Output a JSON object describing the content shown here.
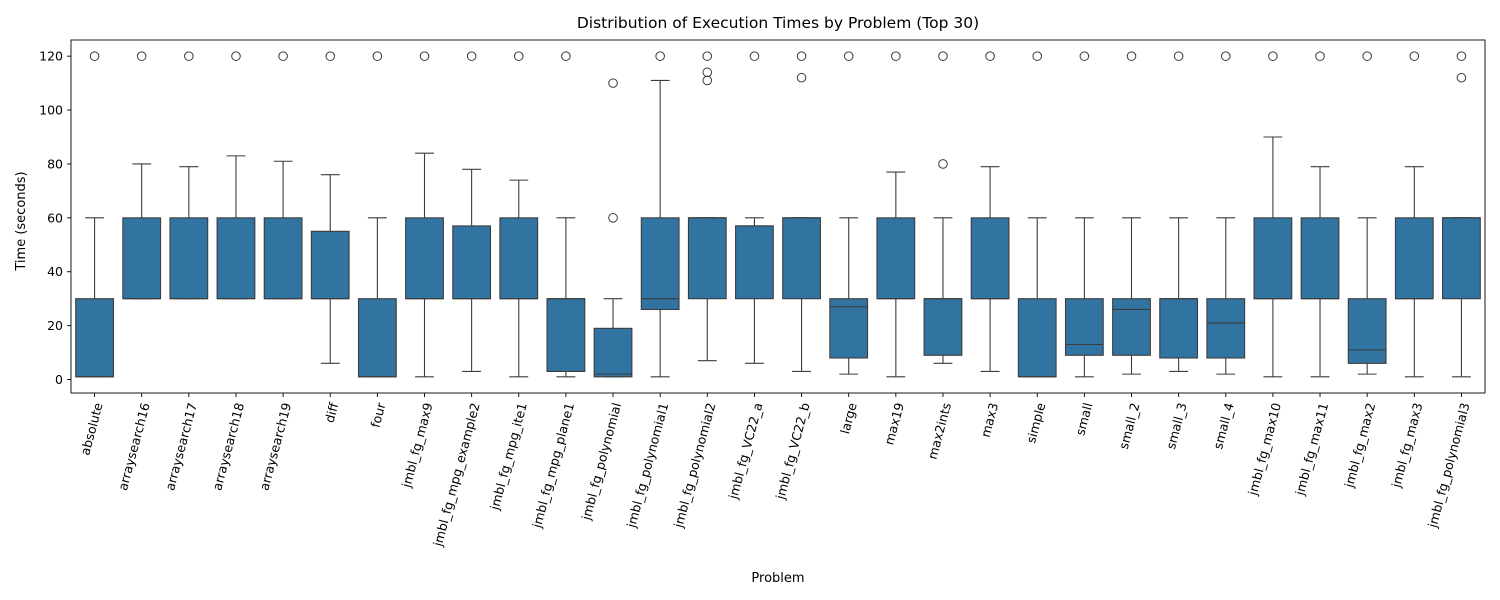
{
  "chart_data": {
    "type": "boxplot",
    "title": "Distribution of Execution Times by Problem (Top 30)",
    "xlabel": "Problem",
    "ylabel": "Time (seconds)",
    "ylim": [
      -5,
      126
    ],
    "yticks": [
      0,
      20,
      40,
      60,
      80,
      100,
      120
    ],
    "grid": false,
    "box_color": "#3274a1",
    "line_color": "#3c3c3c",
    "categories": [
      "absolute",
      "arraysearch16",
      "arraysearch17",
      "arraysearch18",
      "arraysearch19",
      "diff",
      "four",
      "jmbl_fg_max9",
      "jmbl_fg_mpg_example2",
      "jmbl_fg_mpg_ite1",
      "jmbl_fg_mpg_plane1",
      "jmbl_fg_polynomial",
      "jmbl_fg_polynomial1",
      "jmbl_fg_polynomial2",
      "jmbl_fg_VC22_a",
      "jmbl_fg_VC22_b",
      "large",
      "max19",
      "max2ints",
      "max3",
      "simple",
      "small",
      "small_2",
      "small_3",
      "small_4",
      "jmbl_fg_max10",
      "jmbl_fg_max11",
      "jmbl_fg_max2",
      "jmbl_fg_max3",
      "jmbl_fg_polynomial3"
    ],
    "boxes": [
      {
        "whislo": 1,
        "q1": 1,
        "med": 1,
        "q3": 30,
        "whishi": 60,
        "fliers": [
          120
        ]
      },
      {
        "whislo": 30,
        "q1": 30,
        "med": 30,
        "q3": 60,
        "whishi": 80,
        "fliers": [
          120
        ]
      },
      {
        "whislo": 30,
        "q1": 30,
        "med": 30,
        "q3": 60,
        "whishi": 79,
        "fliers": [
          120
        ]
      },
      {
        "whislo": 30,
        "q1": 30,
        "med": 30,
        "q3": 60,
        "whishi": 83,
        "fliers": [
          120
        ]
      },
      {
        "whislo": 30,
        "q1": 30,
        "med": 30,
        "q3": 60,
        "whishi": 81,
        "fliers": [
          120
        ]
      },
      {
        "whislo": 6,
        "q1": 30,
        "med": 30,
        "q3": 55,
        "whishi": 76,
        "fliers": [
          120
        ]
      },
      {
        "whislo": 1,
        "q1": 1,
        "med": 1,
        "q3": 30,
        "whishi": 60,
        "fliers": [
          120
        ]
      },
      {
        "whislo": 1,
        "q1": 30,
        "med": 30,
        "q3": 60,
        "whishi": 84,
        "fliers": [
          120
        ]
      },
      {
        "whislo": 3,
        "q1": 30,
        "med": 30,
        "q3": 57,
        "whishi": 78,
        "fliers": [
          120
        ]
      },
      {
        "whislo": 1,
        "q1": 30,
        "med": 30,
        "q3": 60,
        "whishi": 74,
        "fliers": [
          120
        ]
      },
      {
        "whislo": 1,
        "q1": 3,
        "med": 30,
        "q3": 30,
        "whishi": 60,
        "fliers": [
          120
        ]
      },
      {
        "whislo": 1,
        "q1": 1,
        "med": 2,
        "q3": 19,
        "whishi": 30,
        "fliers": [
          60,
          110
        ]
      },
      {
        "whislo": 1,
        "q1": 26,
        "med": 30,
        "q3": 60,
        "whishi": 111,
        "fliers": [
          120
        ]
      },
      {
        "whislo": 7,
        "q1": 30,
        "med": 60,
        "q3": 60,
        "whishi": 60,
        "fliers": [
          111,
          114,
          120
        ]
      },
      {
        "whislo": 6,
        "q1": 30,
        "med": 57,
        "q3": 57,
        "whishi": 60,
        "fliers": [
          120
        ]
      },
      {
        "whislo": 3,
        "q1": 30,
        "med": 60,
        "q3": 60,
        "whishi": 60,
        "fliers": [
          112,
          120
        ]
      },
      {
        "whislo": 2,
        "q1": 8,
        "med": 27,
        "q3": 30,
        "whishi": 60,
        "fliers": [
          120
        ]
      },
      {
        "whislo": 1,
        "q1": 30,
        "med": 30,
        "q3": 60,
        "whishi": 77,
        "fliers": [
          120
        ]
      },
      {
        "whislo": 6,
        "q1": 9,
        "med": 30,
        "q3": 30,
        "whishi": 60,
        "fliers": [
          80,
          120
        ]
      },
      {
        "whislo": 3,
        "q1": 30,
        "med": 30,
        "q3": 60,
        "whishi": 79,
        "fliers": [
          120
        ]
      },
      {
        "whislo": 1,
        "q1": 1,
        "med": 1,
        "q3": 30,
        "whishi": 60,
        "fliers": [
          120
        ]
      },
      {
        "whislo": 1,
        "q1": 9,
        "med": 13,
        "q3": 30,
        "whishi": 60,
        "fliers": [
          120
        ]
      },
      {
        "whislo": 2,
        "q1": 9,
        "med": 26,
        "q3": 30,
        "whishi": 60,
        "fliers": [
          120
        ]
      },
      {
        "whislo": 3,
        "q1": 8,
        "med": 30,
        "q3": 30,
        "whishi": 60,
        "fliers": [
          120
        ]
      },
      {
        "whislo": 2,
        "q1": 8,
        "med": 21,
        "q3": 30,
        "whishi": 60,
        "fliers": [
          120
        ]
      },
      {
        "whislo": 1,
        "q1": 30,
        "med": 30,
        "q3": 60,
        "whishi": 90,
        "fliers": [
          120
        ]
      },
      {
        "whislo": 1,
        "q1": 30,
        "med": 30,
        "q3": 60,
        "whishi": 79,
        "fliers": [
          120
        ]
      },
      {
        "whislo": 2,
        "q1": 6,
        "med": 11,
        "q3": 30,
        "whishi": 60,
        "fliers": [
          120
        ]
      },
      {
        "whislo": 1,
        "q1": 30,
        "med": 30,
        "q3": 60,
        "whishi": 79,
        "fliers": [
          120
        ]
      },
      {
        "whislo": 1,
        "q1": 30,
        "med": 60,
        "q3": 60,
        "whishi": 60,
        "fliers": [
          112,
          120
        ]
      }
    ]
  }
}
